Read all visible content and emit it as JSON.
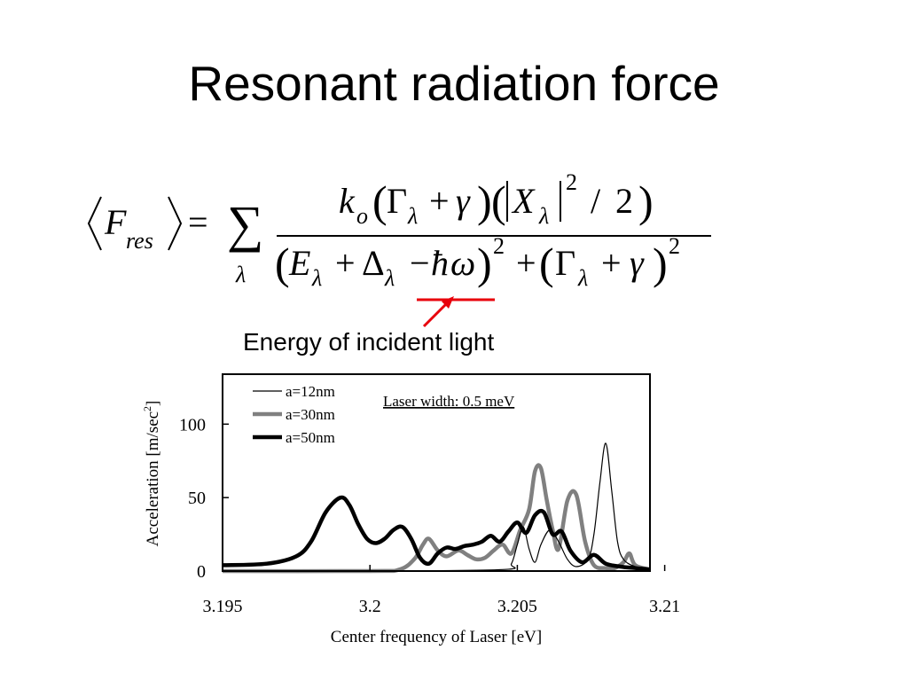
{
  "slide": {
    "title": "Resonant radiation force",
    "annotation": "Energy of incident light",
    "accent_color": "#e8000b"
  },
  "formula": {
    "lhs_symbol": "F",
    "lhs_subscript": "res",
    "equals": "=",
    "sum_symbol": "∑",
    "sum_index": "λ",
    "numerator": {
      "k": "k",
      "k_sub": "o",
      "gamma_cap": "Γ",
      "lambda": "λ",
      "plus": "+",
      "gamma": "γ",
      "x": "X",
      "exp": "2",
      "div": "/",
      "two": "2"
    },
    "denominator": {
      "e": "E",
      "delta": "Δ",
      "minus": "−",
      "hbar": "ħ",
      "omega": "ω",
      "exp": "2"
    }
  },
  "chart_data": {
    "type": "line",
    "title": "",
    "inset_text": "Laser width: 0.5 meV",
    "xlabel": "Center frequency of Laser [eV]",
    "ylabel": "Acceleration [m/sec",
    "ylabel_sup": "2",
    "ylabel_close": "]",
    "xlim": [
      3.195,
      3.2095
    ],
    "ylim": [
      0,
      134
    ],
    "xticks": [
      3.195,
      3.2,
      3.205,
      3.21
    ],
    "xtick_labels": [
      "3.195",
      "3.2",
      "3.205",
      "3.21"
    ],
    "yticks": [
      0,
      50,
      100
    ],
    "ytick_labels": [
      "0",
      "50",
      "100"
    ],
    "legend_position": "top-left",
    "series": [
      {
        "name": "a=12nm",
        "color": "#000000",
        "width": "thin",
        "x": [
          3.195,
          3.2,
          3.2045,
          3.2048,
          3.205,
          3.2052,
          3.2054,
          3.2056,
          3.2058,
          3.2061,
          3.2064,
          3.2067,
          3.207,
          3.2074,
          3.2076,
          3.2078,
          3.208,
          3.2082,
          3.2084,
          3.2086,
          3.209,
          3.2095
        ],
        "y": [
          0,
          0,
          1,
          5,
          18,
          30,
          15,
          6,
          18,
          28,
          20,
          8,
          3,
          8,
          25,
          60,
          87,
          55,
          20,
          8,
          3,
          1
        ]
      },
      {
        "name": "a=30nm",
        "color": "#808080",
        "width": "medium",
        "x": [
          3.195,
          3.2,
          3.201,
          3.2015,
          3.2018,
          3.202,
          3.2023,
          3.2026,
          3.203,
          3.2033,
          3.2036,
          3.2039,
          3.2042,
          3.2045,
          3.2048,
          3.2051,
          3.2054,
          3.2056,
          3.2058,
          3.206,
          3.2062,
          3.2064,
          3.2067,
          3.207,
          3.2073,
          3.2076,
          3.208,
          3.2083,
          3.2086,
          3.2088,
          3.209,
          3.2095
        ],
        "y": [
          0,
          0,
          1,
          8,
          18,
          22,
          14,
          10,
          14,
          11,
          8,
          9,
          14,
          18,
          12,
          28,
          42,
          68,
          70,
          48,
          28,
          15,
          48,
          52,
          20,
          4,
          2,
          2,
          6,
          12,
          4,
          1
        ]
      },
      {
        "name": "a=50nm",
        "color": "#000000",
        "width": "thick",
        "x": [
          3.195,
          3.1965,
          3.1975,
          3.198,
          3.1985,
          3.199,
          3.1993,
          3.1996,
          3.1999,
          3.2002,
          3.2005,
          3.2008,
          3.2011,
          3.2014,
          3.2017,
          3.202,
          3.2023,
          3.2026,
          3.2029,
          3.2032,
          3.2035,
          3.2038,
          3.2041,
          3.2044,
          3.2047,
          3.205,
          3.2053,
          3.2056,
          3.2059,
          3.2062,
          3.2065,
          3.2068,
          3.2072,
          3.2076,
          3.208,
          3.2085,
          3.209,
          3.2095
        ],
        "y": [
          4,
          5,
          10,
          20,
          40,
          50,
          45,
          32,
          22,
          19,
          22,
          28,
          30,
          22,
          9,
          5,
          12,
          16,
          15,
          17,
          18,
          20,
          24,
          20,
          27,
          33,
          26,
          38,
          40,
          25,
          27,
          14,
          6,
          11,
          5,
          3,
          2,
          1
        ]
      }
    ]
  }
}
